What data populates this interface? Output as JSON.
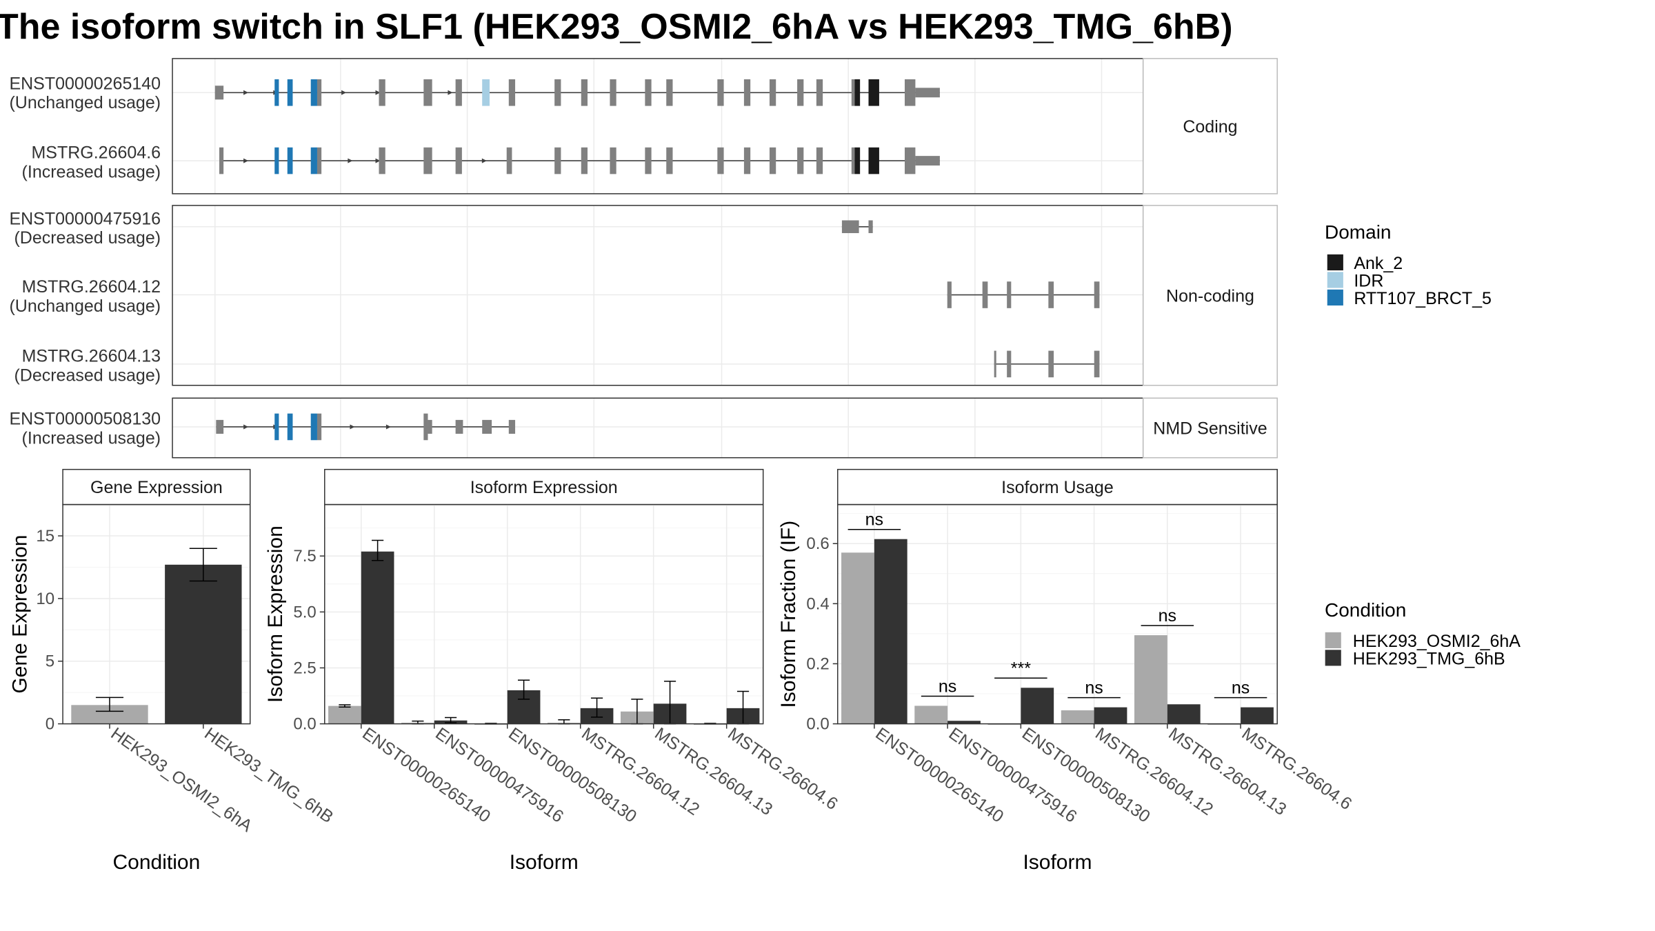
{
  "title": "The isoform switch in SLF1 (HEK293_OSMI2_6hA vs HEK293_TMG_6hB)",
  "structure": {
    "facets": [
      {
        "label": "Coding",
        "transcripts": [
          0,
          1
        ]
      },
      {
        "label": "Non-coding",
        "transcripts": [
          2,
          3,
          4
        ]
      },
      {
        "label": "NMD Sensitive",
        "transcripts": [
          5
        ]
      }
    ],
    "transcripts": [
      {
        "id": "ENST00000265140",
        "usage": "(Unchanged usage)",
        "intron": [
          202,
          883
        ],
        "arrows": [
          232,
          260,
          324,
          356,
          424
        ],
        "exons": [
          [
            202,
            210,
            "g",
            "s"
          ],
          [
            258,
            262,
            "R",
            "t"
          ],
          [
            270,
            275,
            "R",
            "t"
          ],
          [
            292,
            298,
            "R",
            "t"
          ],
          [
            298,
            302,
            "g",
            "t"
          ],
          [
            356,
            362,
            "g",
            "t"
          ],
          [
            398,
            406,
            "g",
            "t"
          ],
          [
            428,
            434,
            "g",
            "t"
          ],
          [
            453,
            460,
            "I",
            "t"
          ],
          [
            478,
            484,
            "g",
            "t"
          ],
          [
            521,
            527,
            "g",
            "t"
          ],
          [
            546,
            552,
            "g",
            "t"
          ],
          [
            573,
            579,
            "g",
            "t"
          ],
          [
            606,
            612,
            "g",
            "t"
          ],
          [
            626,
            632,
            "g",
            "t"
          ],
          [
            674,
            680,
            "g",
            "t"
          ],
          [
            699,
            705,
            "g",
            "t"
          ],
          [
            723,
            729,
            "g",
            "t"
          ],
          [
            749,
            755,
            "g",
            "t"
          ],
          [
            767,
            773,
            "g",
            "t"
          ],
          [
            800,
            803,
            "g",
            "t"
          ],
          [
            803,
            808,
            "A",
            "t"
          ],
          [
            816,
            826,
            "A",
            "t"
          ],
          [
            850,
            860,
            "g",
            "t"
          ],
          [
            860,
            883,
            "g",
            "u"
          ]
        ]
      },
      {
        "id": "MSTRG.26604.6",
        "usage": "(Increased usage)",
        "intron": [
          207,
          883
        ],
        "arrows": [
          232,
          330,
          356,
          456
        ],
        "exons": [
          [
            206,
            210,
            "g",
            "t"
          ],
          [
            258,
            262,
            "R",
            "t"
          ],
          [
            270,
            275,
            "R",
            "t"
          ],
          [
            292,
            298,
            "R",
            "t"
          ],
          [
            298,
            302,
            "g",
            "t"
          ],
          [
            356,
            362,
            "g",
            "t"
          ],
          [
            398,
            406,
            "g",
            "t"
          ],
          [
            428,
            434,
            "g",
            "t"
          ],
          [
            476,
            481,
            "g",
            "t"
          ],
          [
            521,
            527,
            "g",
            "t"
          ],
          [
            546,
            552,
            "g",
            "t"
          ],
          [
            573,
            579,
            "g",
            "t"
          ],
          [
            606,
            612,
            "g",
            "t"
          ],
          [
            626,
            632,
            "g",
            "t"
          ],
          [
            674,
            680,
            "g",
            "t"
          ],
          [
            699,
            705,
            "g",
            "t"
          ],
          [
            723,
            729,
            "g",
            "t"
          ],
          [
            749,
            755,
            "g",
            "t"
          ],
          [
            767,
            773,
            "g",
            "t"
          ],
          [
            800,
            803,
            "g",
            "t"
          ],
          [
            803,
            808,
            "A",
            "t"
          ],
          [
            816,
            826,
            "A",
            "t"
          ],
          [
            850,
            860,
            "g",
            "t"
          ],
          [
            860,
            883,
            "g",
            "u"
          ]
        ]
      },
      {
        "id": "ENST00000475916",
        "usage": "(Decreased usage)",
        "intron": [
          791,
          820
        ],
        "arrows": [],
        "exons": [
          [
            791,
            807,
            "g",
            "m"
          ],
          [
            816,
            820,
            "g",
            "m"
          ]
        ]
      },
      {
        "id": "MSTRG.26604.12",
        "usage": "(Unchanged usage)",
        "intron": [
          890,
          1033
        ],
        "arrows": [],
        "exons": [
          [
            890,
            894,
            "g",
            "t"
          ],
          [
            923,
            928,
            "g",
            "t"
          ],
          [
            946,
            950,
            "g",
            "t"
          ],
          [
            985,
            990,
            "g",
            "t"
          ],
          [
            1028,
            1033,
            "g",
            "t"
          ]
        ]
      },
      {
        "id": "MSTRG.26604.13",
        "usage": "(Decreased usage)",
        "intron": [
          934,
          1033
        ],
        "arrows": [],
        "exons": [
          [
            934,
            936,
            "g",
            "t"
          ],
          [
            946,
            950,
            "g",
            "t"
          ],
          [
            985,
            990,
            "g",
            "t"
          ],
          [
            1028,
            1033,
            "g",
            "t"
          ]
        ]
      },
      {
        "id": "ENST00000508130",
        "usage": "(Increased usage)",
        "intron": [
          203,
          483
        ],
        "arrows": [
          232,
          260,
          332,
          366
        ],
        "exons": [
          [
            203,
            210,
            "g",
            "s"
          ],
          [
            258,
            262,
            "R",
            "t"
          ],
          [
            270,
            275,
            "R",
            "t"
          ],
          [
            292,
            298,
            "R",
            "t"
          ],
          [
            298,
            302,
            "g",
            "t"
          ],
          [
            398,
            402,
            "g",
            "t"
          ],
          [
            402,
            406,
            "g",
            "s"
          ],
          [
            428,
            435,
            "g",
            "s"
          ],
          [
            453,
            462,
            "g",
            "s"
          ],
          [
            478,
            484,
            "g",
            "s"
          ]
        ]
      }
    ]
  },
  "legend_domain": {
    "title": "Domain",
    "items": [
      {
        "label": "Ank_2",
        "color": "#1a1a1a"
      },
      {
        "label": "IDR",
        "color": "#a6cee3"
      },
      {
        "label": "RTT107_BRCT_5",
        "color": "#1f78b4"
      }
    ]
  },
  "legend_condition": {
    "title": "Condition",
    "items": [
      {
        "label": "HEK293_OSMI2_6hA",
        "color": "#a9a9a9"
      },
      {
        "label": "HEK293_TMG_6hB",
        "color": "#333333"
      }
    ]
  },
  "colors": {
    "exon": "#808080",
    "intron": "#404040",
    "condA": "#a9a9a9",
    "condB": "#333333"
  },
  "chart_data": [
    {
      "type": "bar",
      "title": "Gene Expression",
      "xlabel": "Condition",
      "ylabel": "Gene Expression",
      "ylim": [
        0,
        17.5
      ],
      "yticks": [
        0,
        5,
        10,
        15
      ],
      "categories": [
        "HEK293_OSMI2_6hA",
        "HEK293_TMG_6hB"
      ],
      "values": [
        1.5,
        12.7
      ],
      "errors": [
        [
          1.0,
          2.1
        ],
        [
          11.4,
          14.0
        ]
      ]
    },
    {
      "type": "bar",
      "title": "Isoform Expression",
      "xlabel": "Isoform",
      "ylabel": "Isoform Expression",
      "ylim": [
        0,
        9.8
      ],
      "yticks": [
        0.0,
        2.5,
        5.0,
        7.5
      ],
      "categories": [
        "ENST00000265140",
        "ENST00000475916",
        "ENST00000508130",
        "MSTRG.26604.12",
        "MSTRG.26604.13",
        "MSTRG.26604.6"
      ],
      "series": [
        {
          "name": "HEK293_OSMI2_6hA",
          "values": [
            0.8,
            0.05,
            0.0,
            0.05,
            0.55,
            0.0
          ],
          "errors": [
            [
              0.75,
              0.85
            ],
            [
              0.0,
              0.12
            ],
            [
              0.0,
              0.02
            ],
            [
              0.0,
              0.18
            ],
            [
              0.0,
              1.1
            ],
            [
              0.0,
              0.02
            ]
          ]
        },
        {
          "name": "HEK293_TMG_6hB",
          "values": [
            7.7,
            0.15,
            1.5,
            0.7,
            0.9,
            0.7
          ],
          "errors": [
            [
              7.3,
              8.2
            ],
            [
              0.05,
              0.28
            ],
            [
              1.1,
              1.95
            ],
            [
              0.3,
              1.15
            ],
            [
              0.0,
              1.9
            ],
            [
              0.0,
              1.45
            ]
          ]
        }
      ]
    },
    {
      "type": "bar",
      "title": "Isoform Usage",
      "xlabel": "Isoform",
      "ylabel": "Isoform Fraction (IF)",
      "ylim": [
        0,
        0.73
      ],
      "yticks": [
        0.0,
        0.2,
        0.4,
        0.6
      ],
      "categories": [
        "ENST00000265140",
        "ENST00000475916",
        "ENST00000508130",
        "MSTRG.26604.12",
        "MSTRG.26604.13",
        "MSTRG.26604.6"
      ],
      "series": [
        {
          "name": "HEK293_OSMI2_6hA",
          "values": [
            0.57,
            0.06,
            0.0,
            0.045,
            0.295,
            0.0
          ]
        },
        {
          "name": "HEK293_TMG_6hB",
          "values": [
            0.615,
            0.01,
            0.12,
            0.055,
            0.065,
            0.055
          ]
        }
      ],
      "significance": [
        "ns",
        "ns",
        "***",
        "ns",
        "ns",
        "ns"
      ]
    }
  ]
}
